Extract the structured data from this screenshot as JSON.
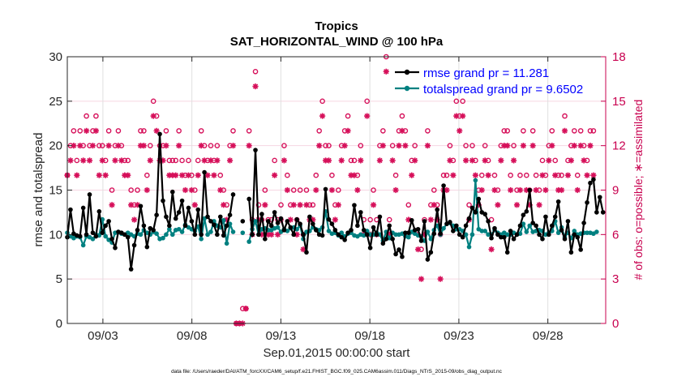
{
  "chart_data": {
    "type": "line",
    "title": "Tropics",
    "subtitle": "SAT_HORIZONTAL_WIND @ 100 hPa",
    "xlabel": "Sep.01,2015 00:00:00 start",
    "ylabel": "rmse and totalspread",
    "y2label": "# of obs: o=possible; ∗=assimilated",
    "footnote": "data file: /Users/raeder/DAI/ATM_forcXX/CAM6_setup/f.e21.FHIST_BGC.f09_025.CAM6assim.011/Diags_NTrS_2015-09/obs_diag_output.nc",
    "x_unit": "days since 2015-09-01 00:00",
    "xlim": [
      0,
      30.25
    ],
    "ylim": [
      0,
      30
    ],
    "y2lim": [
      0,
      18
    ],
    "yticks": [
      "0",
      "5",
      "10",
      "15",
      "20",
      "25",
      "30"
    ],
    "y2ticks": [
      "0",
      "3",
      "6",
      "9",
      "12",
      "15",
      "18"
    ],
    "xticks": [
      {
        "day": 2,
        "label": "09/03"
      },
      {
        "day": 7,
        "label": "09/08"
      },
      {
        "day": 12,
        "label": "09/13"
      },
      {
        "day": 17,
        "label": "09/18"
      },
      {
        "day": 22,
        "label": "09/23"
      },
      {
        "day": 27,
        "label": "09/28"
      }
    ],
    "grid": true,
    "legend": {
      "placement": "top-right",
      "entries": [
        "rmse grand pr = 11.281",
        "totalspread grand pr = 9.6502"
      ]
    },
    "colors": {
      "rmse": "#000000",
      "totalspread": "#008080",
      "obs": "#d6105a",
      "legend_text": "#0000ff",
      "right_axis": "#c8004f"
    },
    "x_step_days": 0.25,
    "series": [
      {
        "name": "rmse",
        "values": [
          9.7,
          12.8,
          10.1,
          9.9,
          9.8,
          13.0,
          10.0,
          14.5,
          10.2,
          9.8,
          12.6,
          10.2,
          11.0,
          11.5,
          9.5,
          8.5,
          10.3,
          10.2,
          10.0,
          9.7,
          6.1,
          8.8,
          10.5,
          13.2,
          11.0,
          8.6,
          10.7,
          10.5,
          12.2,
          21.3,
          13.8,
          12.0,
          11.0,
          14.8,
          11.8,
          12.5,
          13.8,
          11.0,
          13.0,
          11.5,
          10.0,
          12.8,
          10.0,
          17.0,
          12.0,
          11.5,
          11.1,
          10.0,
          12.0,
          9.9,
          11.0,
          12.2,
          14.5,
          null,
          null,
          11.5,
          null,
          14.0,
          10.0,
          19.5,
          10.0,
          12.3,
          9.5,
          11.5,
          11.0,
          12.5,
          11.3,
          11.8,
          10.5,
          11.5,
          10.8,
          10.0,
          11.7,
          11.2,
          10.0,
          8.0,
          12.0,
          11.2,
          10.5,
          10.0,
          9.9,
          15.1,
          11.7,
          11.2,
          10.5,
          10.0,
          9.7,
          9.4,
          10.2,
          10.5,
          13.3,
          11.0,
          12.5,
          10.5,
          10.0,
          8.5,
          10.8,
          10.0,
          12.0,
          9.0,
          9.5,
          11.0,
          9.5,
          7.8,
          8.3,
          7.5,
          10.2,
          10.2,
          11.6,
          10.5,
          10.6,
          9.3,
          11.5,
          7.2,
          8.0,
          10.1,
          12.8,
          10.1,
          15.5,
          11.2,
          11.4,
          10.4,
          11.0,
          10.0,
          9.7,
          11.0,
          11.8,
          13.0,
          12.5,
          14.0,
          12.5,
          12.3,
          11.5,
          9.6,
          10.7,
          10.0,
          9.7,
          9.7,
          8.0,
          10.4,
          9.5,
          10.0,
          11.0,
          12.2,
          12.6,
          15.0,
          11.3,
          11.0,
          10.0,
          9.5,
          12.0,
          10.0,
          11.0,
          12.0,
          13.7,
          10.5,
          9.5,
          11.5,
          8.0,
          10.0,
          9.7,
          8.3,
          11.3,
          13.6,
          15.8,
          16.2,
          12.5,
          14.2,
          12.5
        ]
      },
      {
        "name": "totalspread",
        "values": [
          10.2,
          9.8,
          9.6,
          9.8,
          9.7,
          8.8,
          9.8,
          9.7,
          9.5,
          10.0,
          9.9,
          11.7,
          9.8,
          9.4,
          9.1,
          10.2,
          10.3,
          10.1,
          10.0,
          10.2,
          10.0,
          9.8,
          10.1,
          10.0,
          10.5,
          10.2,
          10.0,
          10.3,
          10.1,
          9.5,
          9.6,
          10.0,
          10.6,
          10.0,
          10.5,
          10.6,
          10.3,
          11.1,
          10.8,
          10.6,
          10.4,
          10.9,
          9.5,
          11.8,
          10.0,
          10.3,
          11.5,
          11.0,
          10.8,
          11.6,
          9.0,
          11.2,
          10.3,
          null,
          null,
          10.2,
          null,
          9.2,
          10.6,
          11.5,
          10.0,
          10.6,
          10.7,
          10.5,
          10.5,
          10.7,
          10.8,
          10.3,
          10.6,
          10.4,
          10.7,
          10.8,
          10.6,
          11.0,
          9.5,
          10.3,
          10.4,
          10.8,
          10.6,
          10.5,
          10.8,
          12.6,
          10.4,
          10.1,
          10.2,
          9.9,
          10.2,
          9.8,
          10.1,
          10.2,
          9.9,
          9.8,
          10.0,
          9.9,
          10.4,
          10.0,
          10.0,
          10.2,
          10.0,
          9.3,
          10.3,
          9.6,
          10.2,
          10.0,
          10.0,
          10.1,
          9.8,
          9.7,
          10.3,
          10.1,
          9.9,
          9.8,
          9.3,
          10.3,
          9.5,
          10.5,
          11.0,
          10.0,
          10.7,
          11.2,
          11.3,
          11.0,
          10.6,
          10.6,
          10.4,
          10.0,
          8.6,
          10.0,
          16.1,
          10.6,
          10.4,
          10.4,
          10.0,
          10.0,
          10.5,
          10.2,
          10.0,
          10.2,
          10.0,
          10.0,
          10.2,
          10.0,
          10.1,
          11.2,
          10.3,
          11.0,
          10.3,
          10.4,
          10.5,
          10.4,
          10.0,
          10.2,
          10.4,
          11.5,
          10.2,
          10.8,
          9.7,
          10.2,
          9.6,
          10.4,
          10.0,
          10.1,
          10.2,
          10.2,
          10.2,
          10.1,
          10.3
        ]
      },
      {
        "name": "obs_possible",
        "values": [
          10,
          12,
          13,
          11,
          13,
          12,
          14,
          12,
          13,
          14,
          12,
          12,
          11,
          13,
          9,
          12,
          13,
          12,
          11,
          11,
          9,
          8,
          9,
          13,
          13,
          10,
          12,
          15,
          14,
          12,
          12,
          13,
          11,
          11,
          11,
          13,
          11,
          10,
          11,
          10,
          9,
          11,
          13,
          12,
          11,
          12,
          11,
          12,
          10,
          9,
          8,
          12,
          13,
          0,
          0,
          1,
          1,
          13,
          7,
          17,
          8,
          7,
          9,
          7,
          7,
          11,
          7,
          8,
          12,
          10,
          8,
          9,
          7,
          9,
          6,
          9,
          8,
          8,
          10,
          13,
          15,
          12,
          12,
          10,
          8,
          9,
          12,
          13,
          14,
          11,
          11,
          10,
          12,
          7,
          15,
          7,
          9,
          7,
          12,
          13,
          18,
          7,
          12,
          10,
          13,
          14,
          13,
          8,
          11,
          12,
          6,
          5,
          7,
          13,
          8,
          9,
          8,
          6,
          10,
          10,
          12,
          11,
          15,
          14,
          15,
          12,
          8,
          12,
          11,
          9,
          10,
          12,
          11,
          7,
          10,
          9,
          12,
          13,
          13,
          10,
          12,
          9,
          10,
          13,
          10,
          9,
          13,
          10,
          9,
          11,
          10,
          12,
          13,
          11,
          10,
          10,
          14,
          11,
          12,
          13,
          10,
          13,
          12,
          11,
          13,
          13
        ]
      },
      {
        "name": "obs_assimilated",
        "values": [
          10,
          11,
          12,
          10,
          12,
          11,
          13,
          11,
          12,
          13,
          10,
          11,
          10,
          12,
          8,
          11,
          12,
          11,
          10,
          10,
          8,
          7,
          8,
          12,
          12,
          9,
          11,
          14,
          13,
          11,
          11,
          12,
          10,
          10,
          10,
          12,
          10,
          9,
          10,
          9,
          8,
          10,
          12,
          11,
          10,
          11,
          10,
          11,
          9,
          8,
          7,
          11,
          12,
          0,
          0,
          0,
          1,
          12,
          6,
          16,
          7,
          6,
          8,
          6,
          6,
          10,
          6,
          7,
          11,
          9,
          7,
          8,
          6,
          8,
          5,
          8,
          7,
          7,
          9,
          12,
          14,
          11,
          11,
          9,
          7,
          8,
          11,
          12,
          13,
          10,
          10,
          9,
          11,
          6,
          14,
          6,
          8,
          6,
          11,
          12,
          17,
          6,
          11,
          9,
          12,
          13,
          12,
          7,
          10,
          11,
          5,
          3,
          6,
          12,
          7,
          8,
          7,
          3,
          9,
          9,
          11,
          10,
          14,
          13,
          14,
          11,
          7,
          11,
          10,
          8,
          9,
          11,
          10,
          5,
          9,
          8,
          11,
          12,
          12,
          9,
          11,
          8,
          9,
          12,
          9,
          8,
          12,
          9,
          8,
          10,
          9,
          11,
          12,
          10,
          9,
          9,
          13,
          10,
          11,
          12,
          9,
          12,
          11,
          10,
          12,
          10
        ]
      }
    ]
  }
}
